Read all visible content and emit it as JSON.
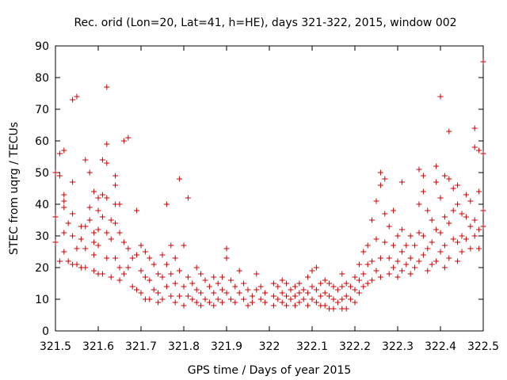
{
  "chart_data": {
    "type": "scatter",
    "title": "Rec. orid (Lon=20, Lat=41, h=HE), days 321-322, 2015, window 002",
    "xlabel": "GPS time / Days of year 2015",
    "ylabel": "STEC from uqrg / TECUs",
    "xlim": [
      321.5,
      322.5
    ],
    "ylim": [
      0,
      90
    ],
    "x_ticks": [
      "321.5",
      "321.6",
      "321.7",
      "321.8",
      "321.9",
      "322",
      "322.1",
      "322.2",
      "322.3",
      "322.4",
      "322.5"
    ],
    "y_ticks": [
      "0",
      "10",
      "20",
      "30",
      "40",
      "50",
      "60",
      "70",
      "80",
      "90"
    ],
    "marker": "+",
    "color": "#cc0000",
    "grid": false,
    "points": [
      [
        321.5,
        50
      ],
      [
        321.5,
        36
      ],
      [
        321.5,
        28
      ],
      [
        321.51,
        22
      ],
      [
        321.51,
        49
      ],
      [
        321.51,
        56
      ],
      [
        321.52,
        57
      ],
      [
        321.52,
        43
      ],
      [
        321.52,
        41
      ],
      [
        321.52,
        39
      ],
      [
        321.52,
        31
      ],
      [
        321.52,
        25
      ],
      [
        321.53,
        22
      ],
      [
        321.53,
        34
      ],
      [
        321.54,
        47
      ],
      [
        321.54,
        73
      ],
      [
        321.54,
        37
      ],
      [
        321.54,
        30
      ],
      [
        321.54,
        21
      ],
      [
        321.55,
        74
      ],
      [
        321.55,
        26
      ],
      [
        321.55,
        21
      ],
      [
        321.56,
        33
      ],
      [
        321.56,
        29
      ],
      [
        321.56,
        20
      ],
      [
        321.57,
        54
      ],
      [
        321.57,
        33
      ],
      [
        321.57,
        26
      ],
      [
        321.57,
        20
      ],
      [
        321.58,
        50
      ],
      [
        321.58,
        39
      ],
      [
        321.58,
        35
      ],
      [
        321.59,
        44
      ],
      [
        321.59,
        31
      ],
      [
        321.59,
        28
      ],
      [
        321.59,
        24
      ],
      [
        321.59,
        19
      ],
      [
        321.6,
        42
      ],
      [
        321.6,
        38
      ],
      [
        321.6,
        32
      ],
      [
        321.6,
        27
      ],
      [
        321.6,
        18
      ],
      [
        321.61,
        54
      ],
      [
        321.61,
        43
      ],
      [
        321.61,
        36
      ],
      [
        321.61,
        18
      ],
      [
        321.62,
        77
      ],
      [
        321.62,
        59
      ],
      [
        321.62,
        53
      ],
      [
        321.62,
        42
      ],
      [
        321.62,
        31
      ],
      [
        321.62,
        23
      ],
      [
        321.63,
        35
      ],
      [
        321.63,
        29
      ],
      [
        321.63,
        17
      ],
      [
        321.64,
        49
      ],
      [
        321.64,
        46
      ],
      [
        321.64,
        40
      ],
      [
        321.64,
        34
      ],
      [
        321.64,
        23
      ],
      [
        321.65,
        40
      ],
      [
        321.65,
        31
      ],
      [
        321.65,
        20
      ],
      [
        321.65,
        16
      ],
      [
        321.66,
        60
      ],
      [
        321.66,
        28
      ],
      [
        321.66,
        18
      ],
      [
        321.67,
        61
      ],
      [
        321.67,
        26
      ],
      [
        321.67,
        20
      ],
      [
        321.68,
        23
      ],
      [
        321.68,
        14
      ],
      [
        321.69,
        38
      ],
      [
        321.69,
        24
      ],
      [
        321.69,
        13
      ],
      [
        321.7,
        27
      ],
      [
        321.7,
        19
      ],
      [
        321.7,
        12
      ],
      [
        321.71,
        25
      ],
      [
        321.71,
        17
      ],
      [
        321.71,
        10
      ],
      [
        321.72,
        23
      ],
      [
        321.72,
        16
      ],
      [
        321.72,
        10
      ],
      [
        321.73,
        21
      ],
      [
        321.73,
        13
      ],
      [
        321.74,
        18
      ],
      [
        321.74,
        12
      ],
      [
        321.74,
        9
      ],
      [
        321.75,
        24
      ],
      [
        321.75,
        17
      ],
      [
        321.75,
        10
      ],
      [
        321.76,
        40
      ],
      [
        321.76,
        21
      ],
      [
        321.76,
        14
      ],
      [
        321.77,
        27
      ],
      [
        321.77,
        18
      ],
      [
        321.77,
        11
      ],
      [
        321.78,
        23
      ],
      [
        321.78,
        15
      ],
      [
        321.78,
        9
      ],
      [
        321.79,
        48
      ],
      [
        321.79,
        19
      ],
      [
        321.79,
        11
      ],
      [
        321.8,
        27
      ],
      [
        321.8,
        14
      ],
      [
        321.8,
        8
      ],
      [
        321.81,
        42
      ],
      [
        321.81,
        17
      ],
      [
        321.81,
        11
      ],
      [
        321.82,
        15
      ],
      [
        321.82,
        10
      ],
      [
        321.83,
        20
      ],
      [
        321.83,
        13
      ],
      [
        321.83,
        9
      ],
      [
        321.84,
        18
      ],
      [
        321.84,
        12
      ],
      [
        321.84,
        8
      ],
      [
        321.85,
        16
      ],
      [
        321.85,
        10
      ],
      [
        321.86,
        14
      ],
      [
        321.86,
        9
      ],
      [
        321.87,
        17
      ],
      [
        321.87,
        12
      ],
      [
        321.87,
        8
      ],
      [
        321.88,
        15
      ],
      [
        321.88,
        10
      ],
      [
        321.89,
        17
      ],
      [
        321.89,
        13
      ],
      [
        321.89,
        9
      ],
      [
        321.9,
        26
      ],
      [
        321.9,
        23
      ],
      [
        321.9,
        12
      ],
      [
        321.91,
        16
      ],
      [
        321.91,
        10
      ],
      [
        321.92,
        14
      ],
      [
        321.92,
        9
      ],
      [
        321.93,
        19
      ],
      [
        321.93,
        12
      ],
      [
        321.94,
        15
      ],
      [
        321.94,
        10
      ],
      [
        321.95,
        13
      ],
      [
        321.95,
        8
      ],
      [
        321.96,
        11
      ],
      [
        321.96,
        9
      ],
      [
        321.97,
        18
      ],
      [
        321.97,
        13
      ],
      [
        321.98,
        14
      ],
      [
        321.98,
        10
      ],
      [
        321.99,
        12
      ],
      [
        321.99,
        9
      ],
      [
        322.01,
        15
      ],
      [
        322.01,
        11
      ],
      [
        322.01,
        8
      ],
      [
        322.02,
        14
      ],
      [
        322.02,
        10
      ],
      [
        322.03,
        16
      ],
      [
        322.03,
        12
      ],
      [
        322.03,
        9
      ],
      [
        322.04,
        15
      ],
      [
        322.04,
        11
      ],
      [
        322.04,
        8
      ],
      [
        322.05,
        13
      ],
      [
        322.05,
        10
      ],
      [
        322.06,
        14
      ],
      [
        322.06,
        11
      ],
      [
        322.06,
        8
      ],
      [
        322.07,
        15
      ],
      [
        322.07,
        12
      ],
      [
        322.07,
        9
      ],
      [
        322.08,
        13
      ],
      [
        322.08,
        10
      ],
      [
        322.09,
        17
      ],
      [
        322.09,
        12
      ],
      [
        322.09,
        8
      ],
      [
        322.1,
        19
      ],
      [
        322.1,
        14
      ],
      [
        322.1,
        10
      ],
      [
        322.11,
        20
      ],
      [
        322.11,
        13
      ],
      [
        322.11,
        9
      ],
      [
        322.12,
        15
      ],
      [
        322.12,
        11
      ],
      [
        322.12,
        8
      ],
      [
        322.13,
        16
      ],
      [
        322.13,
        12
      ],
      [
        322.13,
        8
      ],
      [
        322.14,
        15
      ],
      [
        322.14,
        11
      ],
      [
        322.14,
        7
      ],
      [
        322.15,
        14
      ],
      [
        322.15,
        10
      ],
      [
        322.15,
        7
      ],
      [
        322.16,
        13
      ],
      [
        322.16,
        9
      ],
      [
        322.17,
        18
      ],
      [
        322.17,
        14
      ],
      [
        322.17,
        10
      ],
      [
        322.17,
        7
      ],
      [
        322.18,
        15
      ],
      [
        322.18,
        11
      ],
      [
        322.18,
        7
      ],
      [
        322.19,
        14
      ],
      [
        322.19,
        10
      ],
      [
        322.2,
        17
      ],
      [
        322.2,
        13
      ],
      [
        322.2,
        9
      ],
      [
        322.21,
        21
      ],
      [
        322.21,
        16
      ],
      [
        322.21,
        12
      ],
      [
        322.22,
        25
      ],
      [
        322.22,
        18
      ],
      [
        322.22,
        14
      ],
      [
        322.23,
        27
      ],
      [
        322.23,
        21
      ],
      [
        322.23,
        15
      ],
      [
        322.24,
        35
      ],
      [
        322.24,
        22
      ],
      [
        322.24,
        16
      ],
      [
        322.25,
        41
      ],
      [
        322.25,
        29
      ],
      [
        322.25,
        19
      ],
      [
        322.26,
        50
      ],
      [
        322.26,
        46
      ],
      [
        322.26,
        23
      ],
      [
        322.26,
        17
      ],
      [
        322.27,
        48
      ],
      [
        322.27,
        37
      ],
      [
        322.27,
        28
      ],
      [
        322.28,
        33
      ],
      [
        322.28,
        23
      ],
      [
        322.28,
        18
      ],
      [
        322.29,
        38
      ],
      [
        322.29,
        27
      ],
      [
        322.29,
        20
      ],
      [
        322.3,
        30
      ],
      [
        322.3,
        22
      ],
      [
        322.3,
        17
      ],
      [
        322.31,
        47
      ],
      [
        322.31,
        32
      ],
      [
        322.31,
        25
      ],
      [
        322.31,
        19
      ],
      [
        322.32,
        27
      ],
      [
        322.32,
        21
      ],
      [
        322.33,
        30
      ],
      [
        322.33,
        23
      ],
      [
        322.33,
        18
      ],
      [
        322.34,
        27
      ],
      [
        322.34,
        20
      ],
      [
        322.35,
        51
      ],
      [
        322.35,
        40
      ],
      [
        322.35,
        31
      ],
      [
        322.35,
        22
      ],
      [
        322.36,
        49
      ],
      [
        322.36,
        44
      ],
      [
        322.36,
        30
      ],
      [
        322.36,
        24
      ],
      [
        322.37,
        38
      ],
      [
        322.37,
        26
      ],
      [
        322.37,
        19
      ],
      [
        322.38,
        35
      ],
      [
        322.38,
        28
      ],
      [
        322.38,
        21
      ],
      [
        322.39,
        52
      ],
      [
        322.39,
        47
      ],
      [
        322.39,
        32
      ],
      [
        322.39,
        22
      ],
      [
        322.4,
        74
      ],
      [
        322.4,
        42
      ],
      [
        322.4,
        31
      ],
      [
        322.4,
        25
      ],
      [
        322.41,
        49
      ],
      [
        322.41,
        36
      ],
      [
        322.41,
        27
      ],
      [
        322.41,
        20
      ],
      [
        322.42,
        63
      ],
      [
        322.42,
        48
      ],
      [
        322.42,
        34
      ],
      [
        322.42,
        23
      ],
      [
        322.43,
        45
      ],
      [
        322.43,
        38
      ],
      [
        322.43,
        29
      ],
      [
        322.44,
        46
      ],
      [
        322.44,
        40
      ],
      [
        322.44,
        28
      ],
      [
        322.44,
        22
      ],
      [
        322.45,
        37
      ],
      [
        322.45,
        30
      ],
      [
        322.45,
        25
      ],
      [
        322.46,
        43
      ],
      [
        322.46,
        36
      ],
      [
        322.46,
        29
      ],
      [
        322.47,
        41
      ],
      [
        322.47,
        33
      ],
      [
        322.47,
        26
      ],
      [
        322.48,
        64
      ],
      [
        322.48,
        58
      ],
      [
        322.48,
        35
      ],
      [
        322.48,
        30
      ],
      [
        322.49,
        57
      ],
      [
        322.49,
        44
      ],
      [
        322.49,
        32
      ],
      [
        322.49,
        26
      ],
      [
        322.5,
        85
      ],
      [
        322.5,
        56
      ],
      [
        322.5,
        38
      ],
      [
        322.5,
        33
      ]
    ]
  }
}
